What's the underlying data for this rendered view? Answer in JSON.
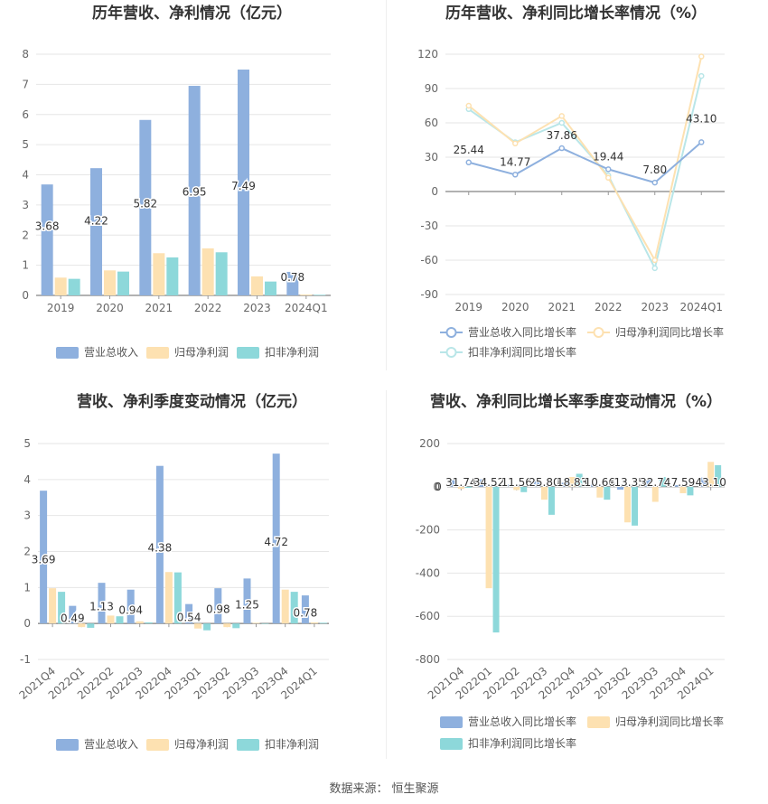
{
  "source": {
    "label": "数据来源：",
    "value": "恒生聚源"
  },
  "chart_data": [
    {
      "type": "bar",
      "title": "历年营收、净利情况（亿元）",
      "categories": [
        "2019",
        "2020",
        "2021",
        "2022",
        "2023",
        "2024Q1"
      ],
      "ylim": [
        0,
        8
      ],
      "yticks": [
        0,
        1,
        2,
        3,
        4,
        5,
        6,
        7,
        8
      ],
      "grid": true,
      "legend": "bottom",
      "series": [
        {
          "name": "营业总收入",
          "color": "#8eb0de",
          "values": [
            3.68,
            4.22,
            5.82,
            6.95,
            7.49,
            0.78
          ]
        },
        {
          "name": "归母净利润",
          "color": "#fde1b1",
          "values": [
            0.59,
            0.83,
            1.4,
            1.56,
            0.63,
            0.03
          ]
        },
        {
          "name": "扣非净利润",
          "color": "#8dd8da",
          "values": [
            0.55,
            0.79,
            1.26,
            1.43,
            0.46,
            0.02
          ]
        }
      ],
      "data_labels": [
        "3.68",
        "4.22",
        "5.82",
        "6.95",
        "7.49",
        "0.78"
      ]
    },
    {
      "type": "line",
      "title": "历年营收、净利同比增长率情况（%）",
      "categories": [
        "2019",
        "2020",
        "2021",
        "2022",
        "2023",
        "2024Q1"
      ],
      "ylim": [
        -90,
        120
      ],
      "yticks": [
        -90,
        -60,
        -30,
        0,
        30,
        60,
        90,
        120
      ],
      "grid": true,
      "legend": "bottom",
      "series": [
        {
          "name": "营业总收入同比增长率",
          "color": "#8eb0de",
          "values": [
            25.44,
            14.77,
            37.86,
            19.44,
            7.8,
            43.1
          ]
        },
        {
          "name": "归母净利润同比增长率",
          "color": "#fde1b1",
          "values": [
            75,
            42,
            66,
            12,
            -60,
            118
          ]
        },
        {
          "name": "扣非净利润同比增长率",
          "color": "#b9e6e8",
          "values": [
            72,
            43,
            60,
            14,
            -67,
            101
          ]
        }
      ],
      "data_labels": [
        "25.44",
        "14.77",
        "37.86",
        "19.44",
        "7.80",
        "43.10"
      ]
    },
    {
      "type": "bar",
      "title": "营收、净利季度变动情况（亿元）",
      "categories": [
        "2021Q4",
        "2022Q1",
        "2022Q2",
        "2022Q3",
        "2022Q4",
        "2023Q1",
        "2023Q2",
        "2023Q3",
        "2023Q4",
        "2024Q1"
      ],
      "ylim": [
        -1,
        5
      ],
      "yticks": [
        -1,
        0,
        1,
        2,
        3,
        4,
        5
      ],
      "grid": true,
      "legend": "bottom",
      "series": [
        {
          "name": "营业总收入",
          "color": "#8eb0de",
          "values": [
            3.69,
            0.49,
            1.13,
            0.94,
            4.38,
            0.54,
            0.98,
            1.25,
            4.72,
            0.78
          ]
        },
        {
          "name": "归母净利润",
          "color": "#fde1b1",
          "values": [
            0.98,
            -0.1,
            0.22,
            0.06,
            1.43,
            -0.14,
            -0.1,
            0.02,
            0.94,
            0.03
          ]
        },
        {
          "name": "扣非净利润",
          "color": "#8dd8da",
          "values": [
            0.88,
            -0.12,
            0.2,
            0.03,
            1.42,
            -0.19,
            -0.13,
            0.0,
            0.88,
            0.02
          ]
        }
      ],
      "data_labels": [
        "3.69",
        "0.49",
        "1.13",
        "0.94",
        "4.38",
        "0.54",
        "0.98",
        "1.25",
        "4.72",
        "0.78"
      ]
    },
    {
      "type": "bar",
      "title": "营收、净利同比增长率季度变动情况（%）",
      "categories": [
        "2021Q4",
        "2022Q1",
        "2022Q2",
        "2022Q3",
        "2022Q4",
        "2023Q1",
        "2023Q2",
        "2023Q3",
        "2023Q4",
        "2024Q1"
      ],
      "ylim": [
        -800,
        200
      ],
      "yticks": [
        -800,
        -600,
        -400,
        -200,
        0,
        200
      ],
      "grid": true,
      "legend": "bottom",
      "series": [
        {
          "name": "营业总收入同比增长率",
          "color": "#8eb0de",
          "values": [
            31.74,
            34.52,
            11.56,
            25.8,
            18.83,
            10.66,
            -13.35,
            32.74,
            7.59,
            43.1
          ]
        },
        {
          "name": "归母净利润同比增长率",
          "color": "#fde1b1",
          "values": [
            -10,
            -470,
            -15,
            -60,
            45,
            -50,
            -165,
            -70,
            -30,
            115
          ]
        },
        {
          "name": "扣非净利润同比增长率",
          "color": "#8dd8da",
          "values": [
            -5,
            -675,
            -25,
            -130,
            60,
            -60,
            -180,
            45,
            -40,
            100
          ]
        }
      ],
      "data_labels": [
        "31.74",
        "34.52",
        "11.56",
        "25.80",
        "18.83",
        "10.66",
        "-13.35",
        "32.74",
        "7.59",
        "43.10"
      ],
      "axis_label": "0"
    }
  ]
}
